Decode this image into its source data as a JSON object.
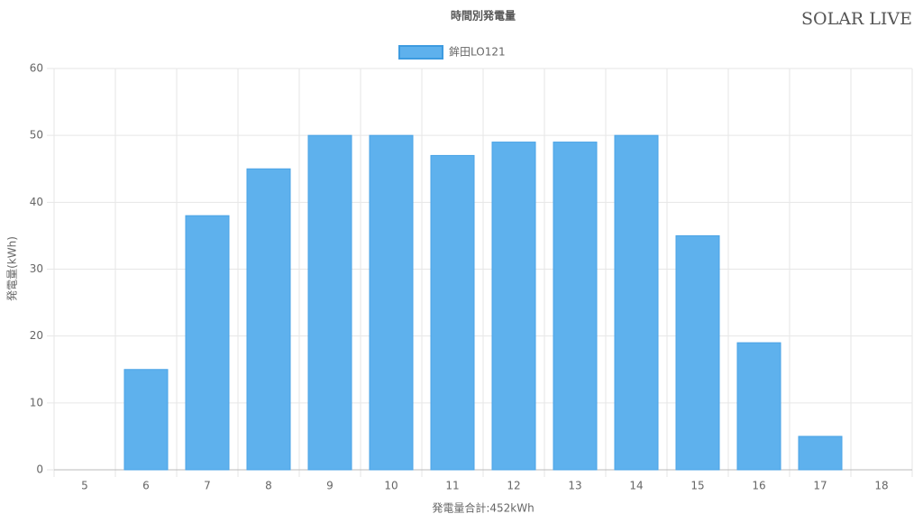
{
  "brand": "SOLAR LIVE",
  "chart_data": {
    "type": "bar",
    "title": "時間別発電量",
    "x_label": "発電量合計:452kWh",
    "y_label": "発電量(kWh)",
    "categories": [
      "5",
      "6",
      "7",
      "8",
      "9",
      "10",
      "11",
      "12",
      "13",
      "14",
      "15",
      "16",
      "17",
      "18"
    ],
    "series": [
      {
        "name": "鉾田LO121",
        "color": "#5eb1ed",
        "values": [
          0,
          15,
          38,
          45,
          50,
          50,
          47,
          49,
          49,
          50,
          35,
          19,
          5,
          0
        ]
      }
    ],
    "ylim": [
      0,
      60
    ],
    "yticks": [
      0,
      10,
      20,
      30,
      40,
      50,
      60
    ],
    "grid": true,
    "legend": "top"
  }
}
